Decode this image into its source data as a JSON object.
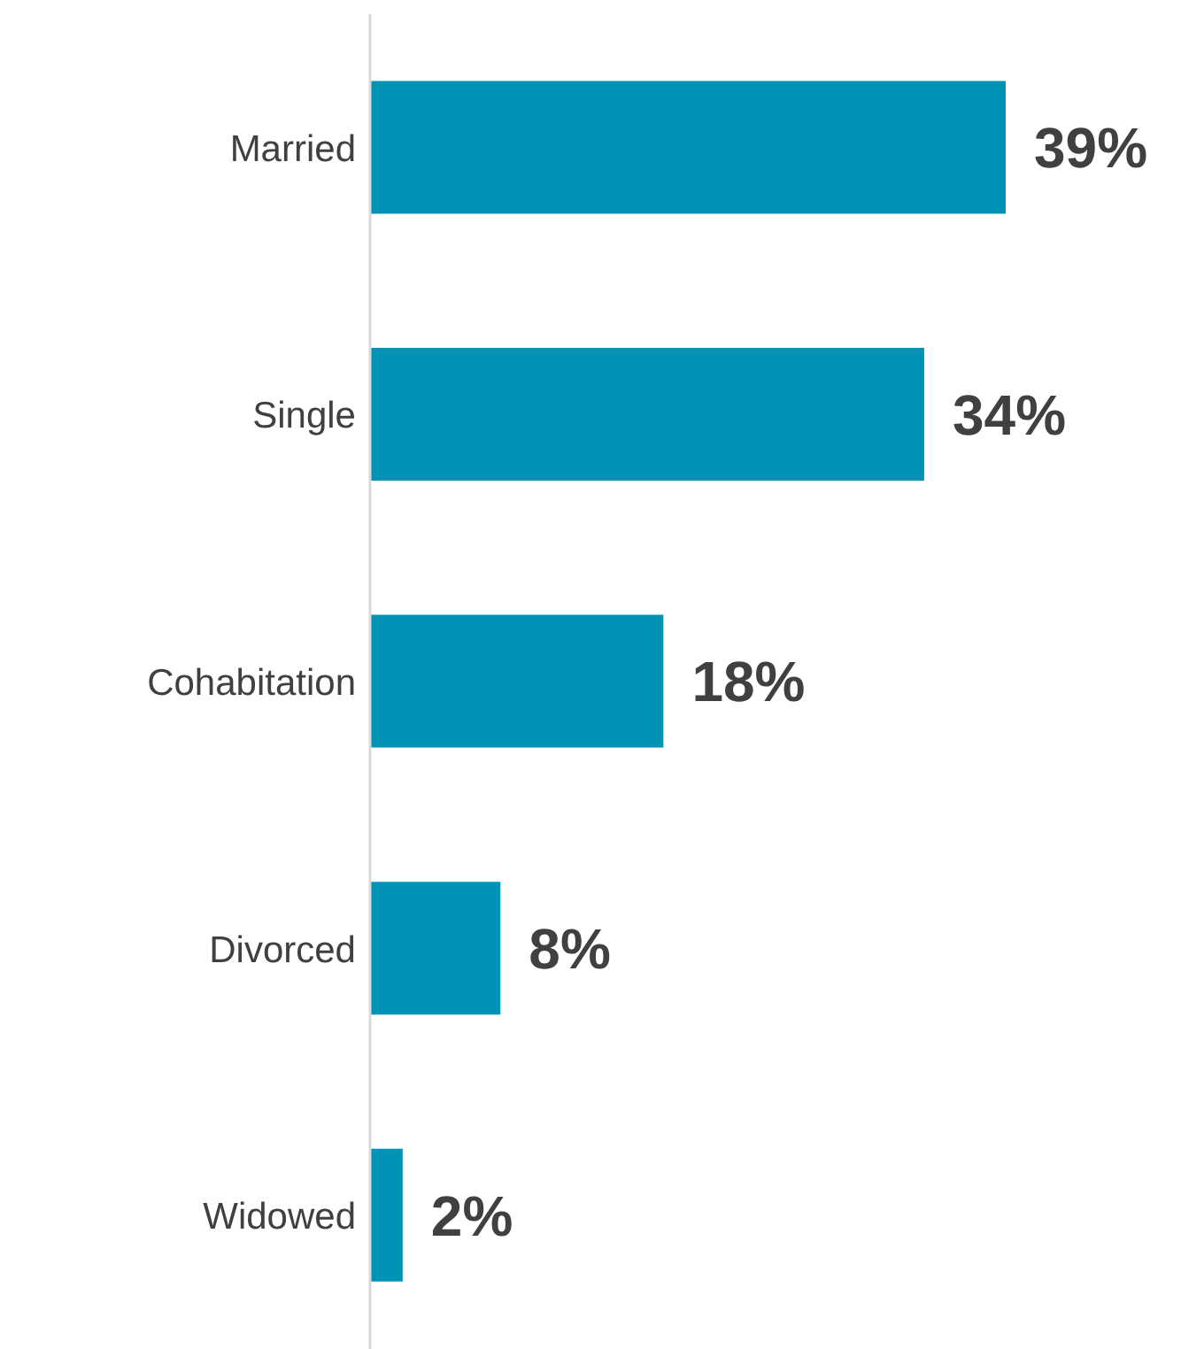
{
  "chart_data": {
    "type": "bar",
    "orientation": "horizontal",
    "categories": [
      "Married",
      "Single",
      "Cohabitation",
      "Divorced",
      "Widowed"
    ],
    "values": [
      39,
      34,
      18,
      8,
      2
    ],
    "value_labels": [
      "39%",
      "34%",
      "18%",
      "8%",
      "2%"
    ],
    "color": "#0093b5",
    "grid": false,
    "legend": false
  }
}
